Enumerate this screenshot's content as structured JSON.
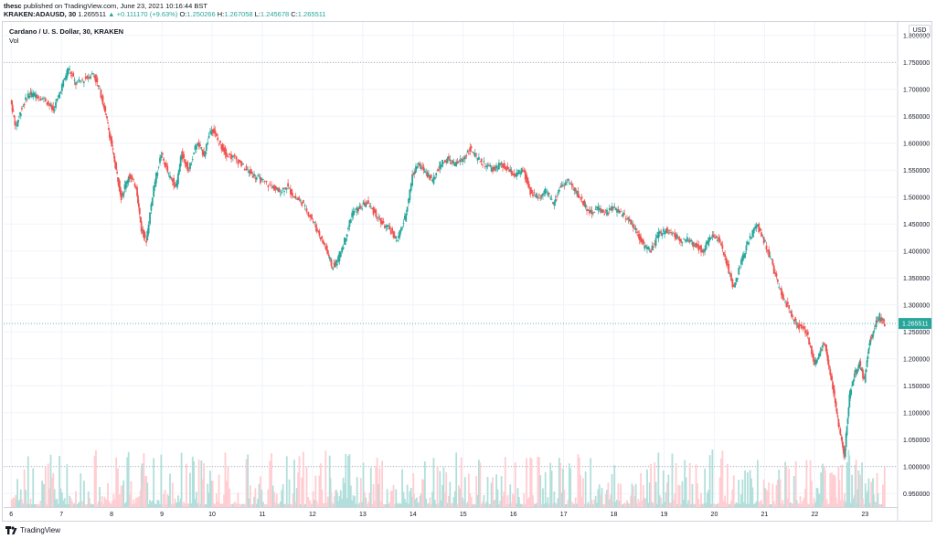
{
  "header": {
    "publisher": "thesc",
    "published_line": "published on TradingView.com, June 23, 2021 10:16:44 BST",
    "symbol": "KRAKEN:ADAUSD, 30",
    "last": "1.265511",
    "change": "▲ +0.111170 (+9.63%)",
    "o_label": "O:",
    "o_val": "1.250266",
    "h_label": "H:",
    "h_val": "1.267058",
    "l_label": "L:",
    "l_val": "1.245678",
    "c_label": "C:",
    "c_val": "1.265511"
  },
  "legend": {
    "title": "Cardano / U. S. Dollar, 30, KRAKEN",
    "vol": "Vol"
  },
  "currency": "USD",
  "footer": {
    "brand": "TradingView"
  },
  "colors": {
    "up": "#26a69a",
    "down": "#ef5350",
    "vol_up": "#b2dfdb",
    "vol_down": "#ffcdd2",
    "grid": "#f0f3fa",
    "price_tag": "#26a69a"
  },
  "chart_data": {
    "type": "candlestick",
    "title": "Cardano / U. S. Dollar, 30, KRAKEN",
    "ylabel": "USD",
    "ylim": [
      0.925,
      1.825
    ],
    "y_ticks": [
      "1.800000",
      "1.750000",
      "1.700000",
      "1.650000",
      "1.600000",
      "1.550000",
      "1.500000",
      "1.450000",
      "1.400000",
      "1.350000",
      "1.300000",
      "1.250000",
      "1.200000",
      "1.150000",
      "1.100000",
      "1.050000",
      "1.000000",
      "0.950000"
    ],
    "x_ticks": [
      "6",
      "7",
      "8",
      "9",
      "10",
      "11",
      "12",
      "13",
      "14",
      "15",
      "16",
      "17",
      "18",
      "19",
      "20",
      "21",
      "22",
      "23"
    ],
    "dotted_levels": [
      1.75,
      1.0
    ],
    "current_price": 1.265511,
    "current_price_label": "1.265511",
    "series": [
      {
        "values": [
          [
            6.0,
            1.68
          ],
          [
            6.1,
            1.63
          ],
          [
            6.2,
            1.66
          ],
          [
            6.35,
            1.69
          ],
          [
            6.5,
            1.69
          ],
          [
            6.7,
            1.68
          ],
          [
            6.85,
            1.66
          ],
          [
            7.0,
            1.7
          ],
          [
            7.15,
            1.74
          ],
          [
            7.3,
            1.71
          ],
          [
            7.5,
            1.72
          ],
          [
            7.65,
            1.73
          ],
          [
            7.8,
            1.69
          ],
          [
            7.9,
            1.65
          ],
          [
            8.0,
            1.6
          ],
          [
            8.1,
            1.55
          ],
          [
            8.2,
            1.5
          ],
          [
            8.35,
            1.54
          ],
          [
            8.5,
            1.52
          ],
          [
            8.6,
            1.44
          ],
          [
            8.7,
            1.42
          ],
          [
            8.85,
            1.52
          ],
          [
            9.0,
            1.58
          ],
          [
            9.15,
            1.54
          ],
          [
            9.3,
            1.52
          ],
          [
            9.4,
            1.58
          ],
          [
            9.55,
            1.55
          ],
          [
            9.7,
            1.6
          ],
          [
            9.85,
            1.58
          ],
          [
            10.0,
            1.63
          ],
          [
            10.15,
            1.6
          ],
          [
            10.3,
            1.58
          ],
          [
            10.5,
            1.57
          ],
          [
            10.7,
            1.55
          ],
          [
            10.85,
            1.54
          ],
          [
            11.0,
            1.53
          ],
          [
            11.2,
            1.52
          ],
          [
            11.35,
            1.51
          ],
          [
            11.5,
            1.52
          ],
          [
            11.65,
            1.5
          ],
          [
            11.8,
            1.49
          ],
          [
            12.0,
            1.46
          ],
          [
            12.15,
            1.43
          ],
          [
            12.3,
            1.4
          ],
          [
            12.4,
            1.37
          ],
          [
            12.5,
            1.38
          ],
          [
            12.65,
            1.42
          ],
          [
            12.8,
            1.47
          ],
          [
            12.95,
            1.48
          ],
          [
            13.1,
            1.49
          ],
          [
            13.25,
            1.47
          ],
          [
            13.4,
            1.45
          ],
          [
            13.55,
            1.44
          ],
          [
            13.7,
            1.42
          ],
          [
            13.85,
            1.46
          ],
          [
            14.0,
            1.54
          ],
          [
            14.1,
            1.56
          ],
          [
            14.25,
            1.55
          ],
          [
            14.4,
            1.53
          ],
          [
            14.55,
            1.56
          ],
          [
            14.7,
            1.57
          ],
          [
            14.85,
            1.56
          ],
          [
            15.0,
            1.57
          ],
          [
            15.15,
            1.59
          ],
          [
            15.3,
            1.57
          ],
          [
            15.45,
            1.56
          ],
          [
            15.6,
            1.55
          ],
          [
            15.75,
            1.56
          ],
          [
            15.9,
            1.55
          ],
          [
            16.05,
            1.54
          ],
          [
            16.2,
            1.55
          ],
          [
            16.35,
            1.51
          ],
          [
            16.5,
            1.5
          ],
          [
            16.65,
            1.51
          ],
          [
            16.8,
            1.49
          ],
          [
            16.95,
            1.52
          ],
          [
            17.1,
            1.53
          ],
          [
            17.25,
            1.51
          ],
          [
            17.4,
            1.49
          ],
          [
            17.55,
            1.47
          ],
          [
            17.7,
            1.48
          ],
          [
            17.85,
            1.47
          ],
          [
            18.0,
            1.48
          ],
          [
            18.15,
            1.47
          ],
          [
            18.3,
            1.46
          ],
          [
            18.45,
            1.44
          ],
          [
            18.6,
            1.41
          ],
          [
            18.75,
            1.4
          ],
          [
            18.9,
            1.43
          ],
          [
            19.05,
            1.44
          ],
          [
            19.2,
            1.43
          ],
          [
            19.35,
            1.42
          ],
          [
            19.5,
            1.42
          ],
          [
            19.65,
            1.41
          ],
          [
            19.8,
            1.4
          ],
          [
            19.95,
            1.43
          ],
          [
            20.1,
            1.42
          ],
          [
            20.25,
            1.38
          ],
          [
            20.4,
            1.33
          ],
          [
            20.55,
            1.38
          ],
          [
            20.7,
            1.42
          ],
          [
            20.85,
            1.45
          ],
          [
            21.0,
            1.42
          ],
          [
            21.15,
            1.38
          ],
          [
            21.3,
            1.33
          ],
          [
            21.45,
            1.3
          ],
          [
            21.6,
            1.27
          ],
          [
            21.7,
            1.26
          ],
          [
            21.85,
            1.25
          ],
          [
            22.0,
            1.19
          ],
          [
            22.1,
            1.21
          ],
          [
            22.2,
            1.23
          ],
          [
            22.3,
            1.18
          ],
          [
            22.4,
            1.13
          ],
          [
            22.5,
            1.07
          ],
          [
            22.6,
            1.02
          ],
          [
            22.7,
            1.13
          ],
          [
            22.8,
            1.17
          ],
          [
            22.9,
            1.19
          ],
          [
            23.0,
            1.16
          ],
          [
            23.1,
            1.23
          ],
          [
            23.2,
            1.26
          ],
          [
            23.3,
            1.28
          ],
          [
            23.4,
            1.265511
          ]
        ]
      }
    ]
  }
}
